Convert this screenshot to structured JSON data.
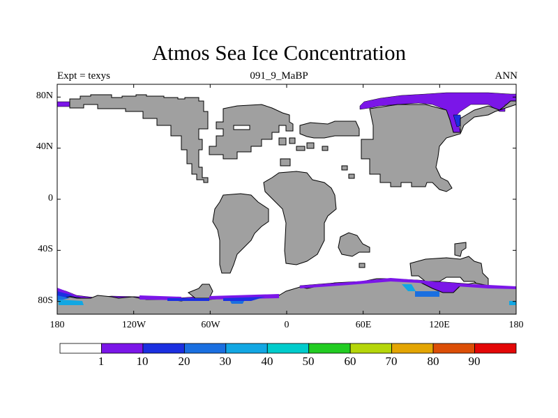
{
  "title": "Atmos Sea Ice Concentration",
  "subtitle_left": "Expt = texys",
  "subtitle_center": "091_9_MaBP",
  "subtitle_right": "ANN",
  "axes": {
    "y_ticks": [
      {
        "value": 80,
        "label": "80N"
      },
      {
        "value": 40,
        "label": "40N"
      },
      {
        "value": 0,
        "label": "0"
      },
      {
        "value": -40,
        "label": "40S"
      },
      {
        "value": -80,
        "label": "80S"
      }
    ],
    "x_ticks": [
      {
        "value": -180,
        "label": "180"
      },
      {
        "value": -120,
        "label": "120W"
      },
      {
        "value": -60,
        "label": "60W"
      },
      {
        "value": 0,
        "label": "0"
      },
      {
        "value": 60,
        "label": "60E"
      },
      {
        "value": 120,
        "label": "120E"
      },
      {
        "value": 180,
        "label": "180"
      }
    ],
    "lon_range": [
      -180,
      180
    ],
    "lat_range": [
      -90,
      90
    ]
  },
  "colorbar": {
    "labels": [
      "1",
      "10",
      "20",
      "30",
      "40",
      "50",
      "60",
      "70",
      "80",
      "90"
    ],
    "colors": [
      "#ffffff",
      "#7b16e8",
      "#1b2fe0",
      "#1a6fe0",
      "#12a7e3",
      "#00cccc",
      "#22cc22",
      "#b5d60a",
      "#e3a503",
      "#dc4e06",
      "#e30707"
    ]
  },
  "colors": {
    "land": "#a0a0a0",
    "ocean": "#ffffff",
    "ice_1_10": "#7b16e8",
    "ice_10_20": "#1b2fe0",
    "ice_20_30": "#1a6fe0",
    "ice_30_40": "#12a7e3",
    "ice_40_50": "#00cccc"
  }
}
